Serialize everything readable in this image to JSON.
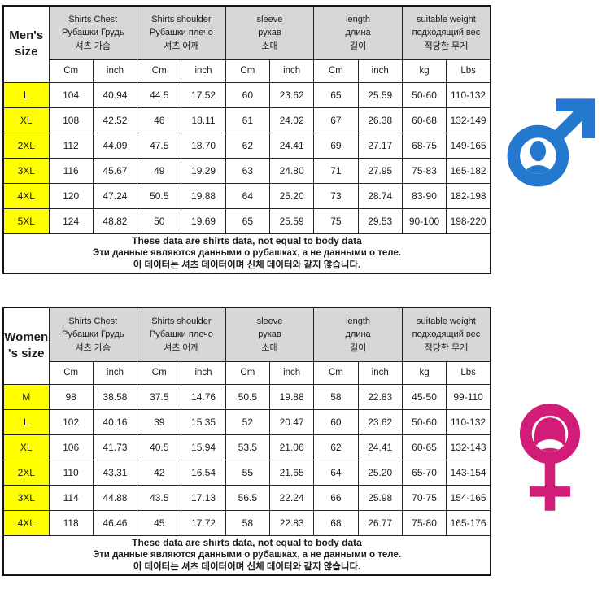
{
  "colors": {
    "accent_yellow": "#ffff00",
    "header_gray": "#d7d7d7",
    "male_blue": "#2479cf",
    "female_pink": "#d21d78"
  },
  "icons": {
    "male": "male-gender-symbol",
    "female": "female-gender-symbol"
  },
  "chart_data": [
    {
      "type": "table",
      "name": "mens-shirt-size-chart",
      "title": "Men's\nsize",
      "column_groups": [
        {
          "label": "Shirts Chest\nРубашки Грудь\n셔츠 가슴",
          "units": [
            "Cm",
            "inch"
          ]
        },
        {
          "label": "Shirts shoulder\nРубашки плечо\n셔츠 어깨",
          "units": [
            "Cm",
            "inch"
          ]
        },
        {
          "label": "sleeve\nрукав\n소매",
          "units": [
            "Cm",
            "inch"
          ]
        },
        {
          "label": "length\nдлина\n길이",
          "units": [
            "Cm",
            "inch"
          ]
        },
        {
          "label": "suitable weight\nподходящий вес\n적당한 무게",
          "units": [
            "kg",
            "Lbs"
          ]
        }
      ],
      "unit_row": [
        "Cm",
        "inch",
        "Cm",
        "inch",
        "Cm",
        "inch",
        "Cm",
        "inch",
        "kg",
        "Lbs"
      ],
      "rows": [
        {
          "size": "L",
          "cells": [
            "104",
            "40.94",
            "44.5",
            "17.52",
            "60",
            "23.62",
            "65",
            "25.59",
            "50-60",
            "110-132"
          ]
        },
        {
          "size": "XL",
          "cells": [
            "108",
            "42.52",
            "46",
            "18.11",
            "61",
            "24.02",
            "67",
            "26.38",
            "60-68",
            "132-149"
          ]
        },
        {
          "size": "2XL",
          "cells": [
            "112",
            "44.09",
            "47.5",
            "18.70",
            "62",
            "24.41",
            "69",
            "27.17",
            "68-75",
            "149-165"
          ]
        },
        {
          "size": "3XL",
          "cells": [
            "116",
            "45.67",
            "49",
            "19.29",
            "63",
            "24.80",
            "71",
            "27.95",
            "75-83",
            "165-182"
          ]
        },
        {
          "size": "4XL",
          "cells": [
            "120",
            "47.24",
            "50.5",
            "19.88",
            "64",
            "25.20",
            "73",
            "28.74",
            "83-90",
            "182-198"
          ]
        },
        {
          "size": "5XL",
          "cells": [
            "124",
            "48.82",
            "50",
            "19.69",
            "65",
            "25.59",
            "75",
            "29.53",
            "90-100",
            "198-220"
          ]
        }
      ],
      "note": [
        "These data are shirts data, not equal to body data",
        "Эти данные являются данными о рубашках, а не данными о теле.",
        "이 데이터는 셔츠 데이터이며 신체 데이터와 같지 않습니다."
      ]
    },
    {
      "type": "table",
      "name": "womens-shirt-size-chart",
      "title": "Women\n's size",
      "column_groups": [
        {
          "label": "Shirts Chest\nРубашки Грудь\n셔츠 가슴",
          "units": [
            "Cm",
            "inch"
          ]
        },
        {
          "label": "Shirts shoulder\nРубашки плечо\n셔츠 어깨",
          "units": [
            "Cm",
            "inch"
          ]
        },
        {
          "label": "sleeve\nрукав\n소매",
          "units": [
            "Cm",
            "inch"
          ]
        },
        {
          "label": "length\nдлина\n길이",
          "units": [
            "Cm",
            "inch"
          ]
        },
        {
          "label": "suitable weight\nподходящий вес\n적당한 무게",
          "units": [
            "kg",
            "Lbs"
          ]
        }
      ],
      "unit_row": [
        "Cm",
        "inch",
        "Cm",
        "inch",
        "Cm",
        "inch",
        "Cm",
        "inch",
        "kg",
        "Lbs"
      ],
      "rows": [
        {
          "size": "M",
          "cells": [
            "98",
            "38.58",
            "37.5",
            "14.76",
            "50.5",
            "19.88",
            "58",
            "22.83",
            "45-50",
            "99-110"
          ]
        },
        {
          "size": "L",
          "cells": [
            "102",
            "40.16",
            "39",
            "15.35",
            "52",
            "20.47",
            "60",
            "23.62",
            "50-60",
            "110-132"
          ]
        },
        {
          "size": "XL",
          "cells": [
            "106",
            "41.73",
            "40.5",
            "15.94",
            "53.5",
            "21.06",
            "62",
            "24.41",
            "60-65",
            "132-143"
          ]
        },
        {
          "size": "2XL",
          "cells": [
            "110",
            "43.31",
            "42",
            "16.54",
            "55",
            "21.65",
            "64",
            "25.20",
            "65-70",
            "143-154"
          ]
        },
        {
          "size": "3XL",
          "cells": [
            "114",
            "44.88",
            "43.5",
            "17.13",
            "56.5",
            "22.24",
            "66",
            "25.98",
            "70-75",
            "154-165"
          ]
        },
        {
          "size": "4XL",
          "cells": [
            "118",
            "46.46",
            "45",
            "17.72",
            "58",
            "22.83",
            "68",
            "26.77",
            "75-80",
            "165-176"
          ]
        }
      ],
      "note": [
        "These data are shirts data, not equal to body data",
        "Эти данные являются данными о рубашках, а не данными о теле.",
        "이 데이터는 셔츠 데이터이며 신체 데이터와 같지 않습니다."
      ]
    }
  ]
}
